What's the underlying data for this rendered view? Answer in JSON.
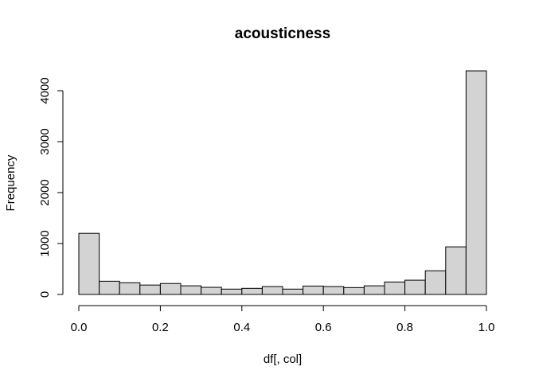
{
  "chart_data": {
    "type": "bar",
    "title": "acousticness",
    "xlabel": "df[, col]",
    "ylabel": "Frequency",
    "xlim": [
      0,
      1
    ],
    "ylim": [
      0,
      4400
    ],
    "bin_edges": [
      0.0,
      0.05,
      0.1,
      0.15,
      0.2,
      0.25,
      0.3,
      0.35,
      0.4,
      0.45,
      0.5,
      0.55,
      0.6,
      0.65,
      0.7,
      0.75,
      0.8,
      0.85,
      0.9,
      0.95,
      1.0
    ],
    "values": [
      1200,
      260,
      230,
      185,
      215,
      170,
      140,
      105,
      120,
      155,
      105,
      165,
      155,
      135,
      170,
      245,
      280,
      465,
      935,
      4390
    ],
    "x_ticks": [
      0.0,
      0.2,
      0.4,
      0.6,
      0.8,
      1.0
    ],
    "x_tick_labels": [
      "0.0",
      "0.2",
      "0.4",
      "0.6",
      "0.8",
      "1.0"
    ],
    "y_ticks": [
      0,
      1000,
      2000,
      3000,
      4000
    ],
    "y_tick_labels": [
      "0",
      "1000",
      "2000",
      "3000",
      "4000"
    ],
    "grid": false,
    "colors": {
      "bar_fill": "#d3d3d3",
      "bar_stroke": "#000000"
    }
  }
}
